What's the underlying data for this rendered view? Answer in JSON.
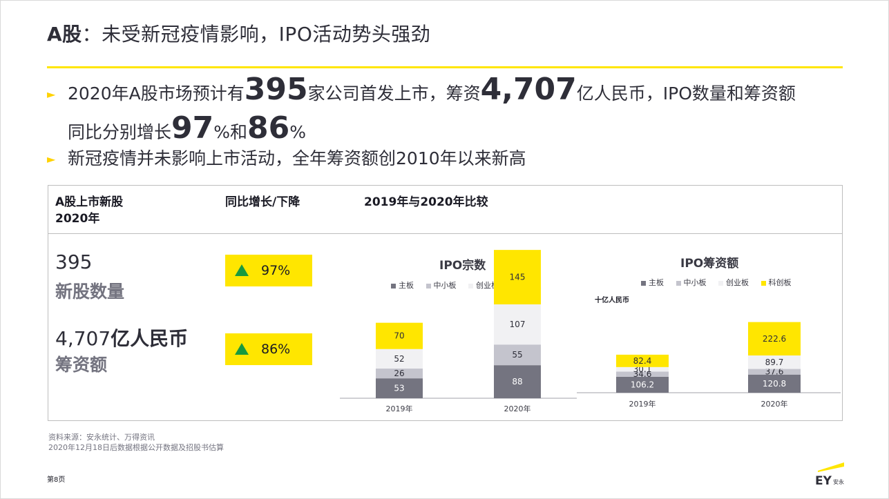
{
  "title": {
    "prefix": "A股",
    "rest": "：未受新冠疫情影响，IPO活动势头强劲"
  },
  "bullets": {
    "b1_a": "2020年A股市场预计有",
    "b1_n1": "395",
    "b1_b": "家公司首发上市，筹资",
    "b1_n2": "4,707",
    "b1_c": "亿人民币，IPO数量和筹资额",
    "b1_d": "同比分别增长",
    "b1_n3": "97",
    "b1_p1": "%和",
    "b1_n4": "86",
    "b1_p2": "%",
    "b2": "新冠疫情并未影响上市活动，全年筹资额创2010年以来新高"
  },
  "panel": {
    "col1_header_1": "A股上市新股",
    "col1_header_2": "2020年",
    "col2_header": "同比增长/下降",
    "col3_header": "2019年与2020年比较",
    "kpi1_value": "395",
    "kpi1_label": "新股数量",
    "kpi2_value": "4,707",
    "kpi2_unit": "亿人民币",
    "kpi2_label": "筹资额",
    "badge1": "97%",
    "badge2": "86%"
  },
  "legend": [
    "主板",
    "中小板",
    "创业板",
    "科创板"
  ],
  "colors": {
    "main": "#747480",
    "sme": "#c4c4cd",
    "chinext": "#f1f1f3",
    "star": "#ffe600",
    "up": "#199a3f",
    "accent": "#ffe600"
  },
  "chart_data": [
    {
      "type": "bar",
      "stacked": true,
      "title": "IPO宗数",
      "categories": [
        "2019年",
        "2020年"
      ],
      "series": [
        {
          "name": "主板",
          "values": [
            53,
            88
          ]
        },
        {
          "name": "中小板",
          "values": [
            26,
            55
          ]
        },
        {
          "name": "创业板",
          "values": [
            52,
            107
          ]
        },
        {
          "name": "科创板",
          "values": [
            70,
            145
          ]
        }
      ]
    },
    {
      "type": "bar",
      "stacked": true,
      "title": "IPO筹资额",
      "unit": "十亿人民币",
      "categories": [
        "2019年",
        "2020年"
      ],
      "series": [
        {
          "name": "主板",
          "values": [
            106.2,
            120.8
          ]
        },
        {
          "name": "中小板",
          "values": [
            34.6,
            37.6
          ]
        },
        {
          "name": "创业板",
          "values": [
            30.1,
            89.7
          ]
        },
        {
          "name": "科创板",
          "values": [
            82.4,
            222.6
          ]
        }
      ]
    }
  ],
  "footer": {
    "source1": "资料来源：安永统计、万得资讯",
    "source2": "2020年12月18日后数据根据公开数据及招股书估算",
    "page": "第8页",
    "logo_ey": "EY",
    "logo_cn": "安永"
  }
}
